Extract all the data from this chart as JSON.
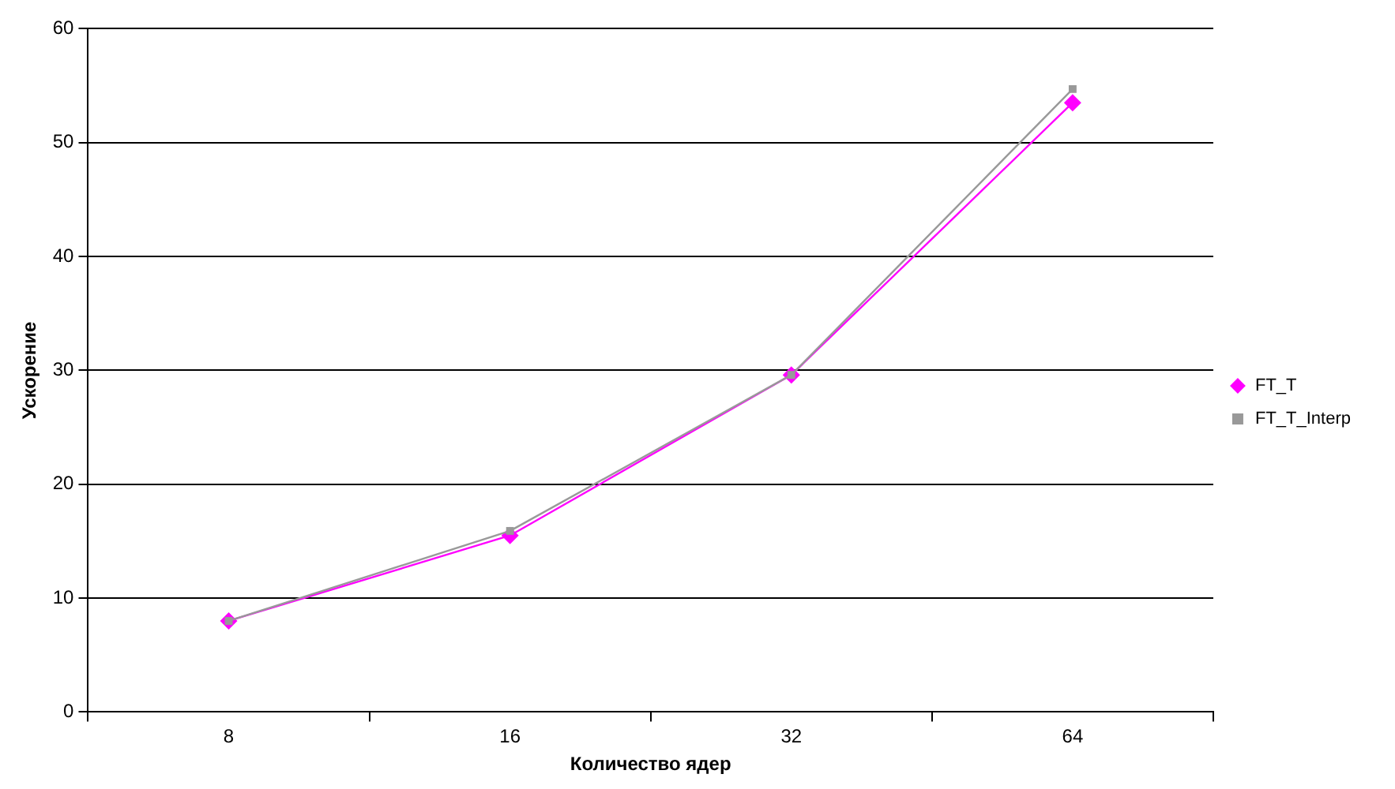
{
  "chart_data": {
    "type": "line",
    "xlabel": "Количество ядер",
    "ylabel": "Ускорение",
    "categories": [
      "8",
      "16",
      "32",
      "64"
    ],
    "series": [
      {
        "name": "FT_T",
        "color": "#ff00ff",
        "values": [
          8.0,
          15.5,
          29.6,
          53.5
        ],
        "marker": "diamond"
      },
      {
        "name": "FT_T_Interp",
        "color": "#999999",
        "values": [
          8.0,
          15.9,
          29.6,
          54.7
        ],
        "marker": "square"
      }
    ],
    "ylim": [
      0,
      60
    ],
    "yticks": [
      0,
      10,
      20,
      30,
      40,
      50,
      60
    ],
    "grid": "y",
    "legend": "right",
    "line_style": "solid"
  }
}
